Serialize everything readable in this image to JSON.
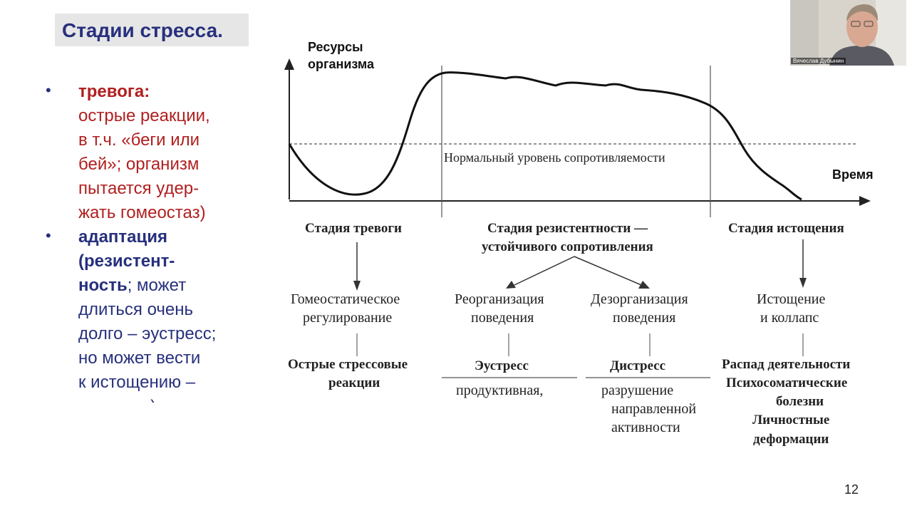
{
  "slide": {
    "title": "Стадии стресса.",
    "page_number": "12",
    "bullets": [
      {
        "lines": [
          {
            "parts": [
              {
                "text": "тревога:",
                "bold": true
              }
            ],
            "color": "red"
          },
          {
            "parts": [
              {
                "text": "острые реакции,",
                "bold": false
              }
            ],
            "color": "red"
          },
          {
            "parts": [
              {
                "text": "в т.ч. «беги или",
                "bold": false
              }
            ],
            "color": "red"
          },
          {
            "parts": [
              {
                "text": "бей»; организм",
                "bold": false
              }
            ],
            "color": "red"
          },
          {
            "parts": [
              {
                "text": "пытается удер-",
                "bold": false
              }
            ],
            "color": "red"
          },
          {
            "parts": [
              {
                "text": "жать гомеостаз)",
                "bold": false
              }
            ],
            "color": "red"
          }
        ]
      },
      {
        "lines": [
          {
            "parts": [
              {
                "text": "адаптация",
                "bold": true
              }
            ],
            "color": "blue"
          },
          {
            "parts": [
              {
                "text": "(резистент-",
                "bold": true
              }
            ],
            "color": "blue"
          },
          {
            "parts": [
              {
                "text": "ность",
                "bold": true
              },
              {
                "text": "; может",
                "bold": false
              }
            ],
            "color": "blue"
          },
          {
            "parts": [
              {
                "text": "длиться очень",
                "bold": false
              }
            ],
            "color": "blue"
          },
          {
            "parts": [
              {
                "text": "долго – эустресс;",
                "bold": false
              }
            ],
            "color": "blue"
          },
          {
            "parts": [
              {
                "text": "но может вести",
                "bold": false
              }
            ],
            "color": "blue"
          },
          {
            "parts": [
              {
                "text": "к истощению –",
                "bold": false
              }
            ],
            "color": "blue"
          },
          {
            "parts": [
              {
                "text": "дистресс)",
                "bold": false
              }
            ],
            "color": "blue"
          }
        ]
      }
    ]
  },
  "diagram": {
    "y_axis_label_1": "Ресурсы",
    "y_axis_label_2": "организма",
    "x_axis_label": "Время",
    "normal_level_label": "Нормальный уровень сопротивляемости",
    "stages": {
      "alarm": "Стадия тревоги",
      "resistance_1": "Стадия резистентности —",
      "resistance_2": "устойчивого сопротивления",
      "exhaustion": "Стадия истощения"
    },
    "outcomes": {
      "homeostatic_1": "Гомеостатическое",
      "homeostatic_2": "регулирование",
      "reorg_1": "Реорганизация",
      "reorg_2": "поведения",
      "disorg_1": "Дезорганизация",
      "disorg_2": "поведения",
      "collapse_1": "Истощение",
      "collapse_2": "и коллапс"
    },
    "results": {
      "acute_1": "Острые стрессовые",
      "acute_2": "реакции",
      "eustress": "Эустресс",
      "eustress_desc": "продуктивная,",
      "distress": "Дистресс",
      "distress_desc_1": "разрушение",
      "distress_desc_2": "направленной",
      "distress_desc_3": "активности",
      "exh_1": "Распад деятельности",
      "exh_2": "Психосоматические",
      "exh_3": "болезни",
      "exh_4": "Личностные",
      "exh_5": "деформации"
    }
  },
  "video": {
    "participant_name": "Вячеслав Дубынин"
  },
  "colors": {
    "title_blue": "#27307d",
    "alarm_red": "#b11f1f",
    "title_bg": "#e6e6e6"
  }
}
